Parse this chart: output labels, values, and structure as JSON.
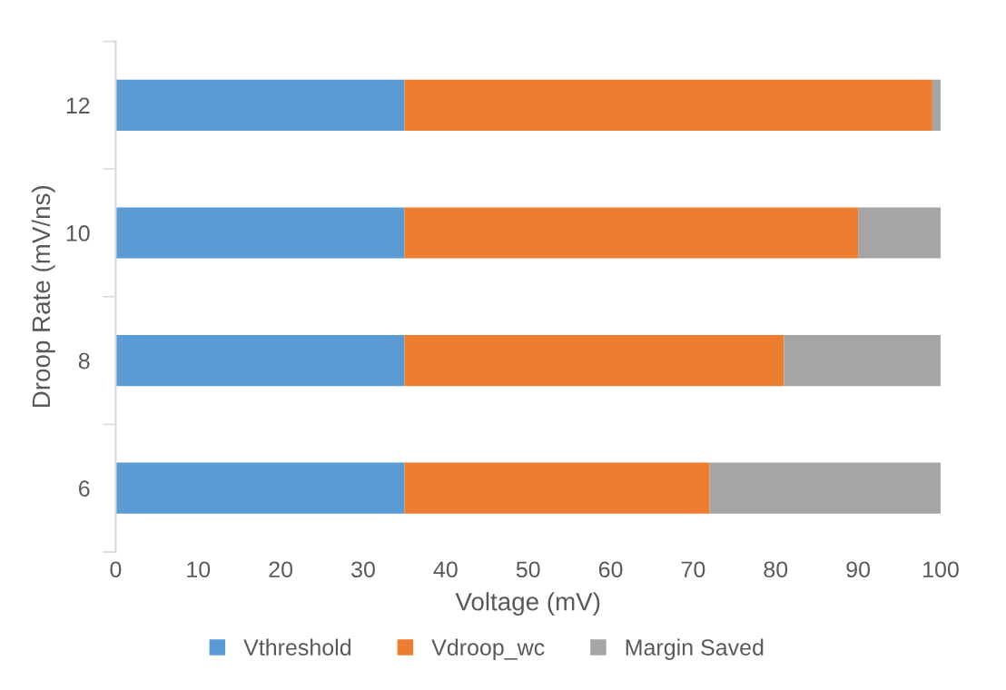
{
  "chart_data": {
    "type": "bar",
    "orientation": "horizontal",
    "stacked": true,
    "xlabel": "Voltage (mV)",
    "ylabel": "Droop Rate (mV/ns)",
    "categories": [
      "12",
      "10",
      "8",
      "6"
    ],
    "series": [
      {
        "name": "Vthreshold",
        "color": "#5b9bd5",
        "values": [
          35,
          35,
          35,
          35
        ]
      },
      {
        "name": "Vdroop_wc",
        "color": "#ed7d31",
        "values": [
          64,
          55,
          46,
          37
        ]
      },
      {
        "name": "Margin Saved",
        "color": "#a5a5a5",
        "values": [
          1,
          10,
          19,
          28
        ]
      }
    ],
    "xlim": [
      0,
      100
    ],
    "xticks": [
      0,
      10,
      20,
      30,
      40,
      50,
      60,
      70,
      80,
      90,
      100
    ],
    "grid": false,
    "legend": "bottom"
  }
}
